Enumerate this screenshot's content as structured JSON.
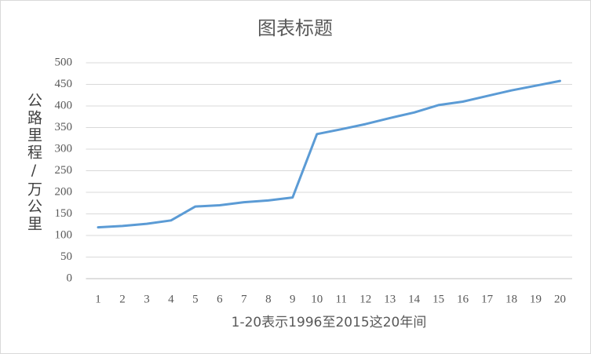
{
  "chart_data": {
    "type": "line",
    "title": "图表标题",
    "x_label": "1-20表示1996至2015这20年间",
    "y_label": "公路里程/万公里",
    "categories": [
      "1",
      "2",
      "3",
      "4",
      "5",
      "6",
      "7",
      "8",
      "9",
      "10",
      "11",
      "12",
      "13",
      "14",
      "15",
      "16",
      "17",
      "18",
      "19",
      "20"
    ],
    "series": [
      {
        "name": "公路里程",
        "color": "#5b9bd5",
        "values": [
          119,
          122,
          127,
          135,
          167,
          170,
          177,
          181,
          188,
          335,
          346,
          358,
          372,
          385,
          402,
          410,
          423,
          436,
          447,
          458
        ]
      }
    ],
    "ylim": [
      0,
      500
    ],
    "yticks": [
      0,
      50,
      100,
      150,
      200,
      250,
      300,
      350,
      400,
      450,
      500
    ],
    "grid": true
  }
}
